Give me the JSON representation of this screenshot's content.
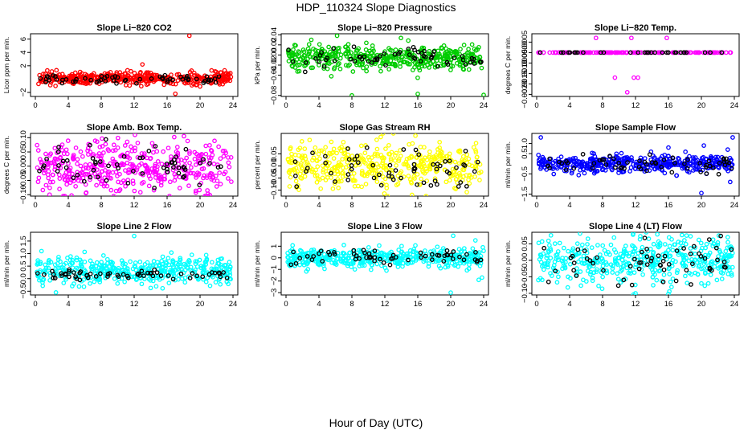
{
  "title": "HDP_110324  Slope Diagnostics",
  "xlabel": "Hour of Day (UTC)",
  "colors": {
    "red": "#ff0000",
    "green": "#00cc00",
    "magenta": "#ff00ff",
    "yellow": "#ffff00",
    "blue": "#0000ff",
    "cyan": "#00ffff",
    "black": "#000000"
  },
  "chart_data": [
    {
      "type": "scatter",
      "title": "Slope Li−820 CO2",
      "ylabel": "Licor ppm per min.",
      "xlim": [
        0,
        24
      ],
      "ylim": [
        -2.6,
        6.8
      ],
      "xticks": [
        0,
        4,
        8,
        12,
        16,
        20,
        24
      ],
      "xtick_labels": [
        "0",
        "4",
        "8",
        "12",
        "16",
        "20",
        "24"
      ],
      "yticks": [
        -2,
        2,
        4,
        6
      ],
      "ytick_labels": [
        "−2",
        "2",
        "4",
        "6"
      ],
      "color": "#ff0000",
      "series": [
        {
          "name": "all",
          "color": "#ff0000",
          "n": 430,
          "center": 0.1,
          "spread": 0.45
        },
        {
          "name": "flagged",
          "color": "#000000",
          "n": 60,
          "center": 0.0,
          "spread": 0.35
        }
      ],
      "outliers": [
        [
          18.7,
          6.5
        ],
        [
          13.0,
          2.2
        ],
        [
          21.4,
          1.3
        ],
        [
          22.5,
          1.0
        ],
        [
          17.0,
          -2.2
        ],
        [
          20.0,
          -1.1
        ],
        [
          11.0,
          -0.9
        ]
      ]
    },
    {
      "type": "scatter",
      "title": "Slope Li−820 Pressure",
      "ylabel": "kPa per min.",
      "xlim": [
        0,
        24
      ],
      "ylim": [
        -0.082,
        0.042
      ],
      "xticks": [
        0,
        4,
        8,
        12,
        16,
        20,
        24
      ],
      "xtick_labels": [
        "0",
        "4",
        "8",
        "12",
        "16",
        "20",
        "24"
      ],
      "yticks": [
        -0.08,
        -0.04,
        -0.02,
        0.0,
        0.02,
        0.04
      ],
      "ytick_labels": [
        "−0.08",
        "−0.04",
        "−0.02",
        "0.00",
        "0.02",
        "0.04"
      ],
      "color": "#00cc00",
      "series": [
        {
          "name": "all",
          "color": "#00cc00",
          "n": 430,
          "center": -0.005,
          "spread": 0.012
        },
        {
          "name": "flagged",
          "color": "#000000",
          "n": 60,
          "center": -0.006,
          "spread": 0.01
        }
      ],
      "outliers": [
        [
          8.0,
          -0.08
        ],
        [
          24.0,
          -0.079
        ],
        [
          16.0,
          -0.077
        ],
        [
          6.2,
          0.038
        ],
        [
          5.5,
          -0.042
        ],
        [
          1.6,
          -0.032
        ]
      ]
    },
    {
      "type": "scatter",
      "title": "Slope Li−820 Temp.",
      "ylabel": "degrees C per min.",
      "xlim": [
        0,
        24
      ],
      "ylim": [
        -0.0021,
        0.0009
      ],
      "xticks": [
        0,
        4,
        8,
        12,
        16,
        20,
        24
      ],
      "xtick_labels": [
        "0",
        "4",
        "8",
        "12",
        "16",
        "20",
        "24"
      ],
      "yticks": [
        -0.002,
        -0.0015,
        -0.001,
        -0.0005,
        0.0,
        0.0005
      ],
      "ytick_labels": [
        "−0.0020",
        "−0.0015",
        "−0.0010",
        "−0.0005",
        "0.0000",
        "0.0005"
      ],
      "color": "#ff00ff",
      "series": [
        {
          "name": "all",
          "color": "#ff00ff",
          "n": 160,
          "center": 0.0,
          "spread": 0.0
        },
        {
          "name": "flagged",
          "color": "#000000",
          "n": 30,
          "center": 0.0,
          "spread": 0.0
        }
      ],
      "outliers": [
        [
          7.2,
          0.0007
        ],
        [
          11.5,
          0.0007
        ],
        [
          15.8,
          0.0007
        ],
        [
          9.5,
          -0.0012
        ],
        [
          12.3,
          -0.0012
        ],
        [
          11.0,
          -0.0019
        ],
        [
          11.8,
          -0.0012
        ]
      ]
    },
    {
      "type": "scatter",
      "title": "Slope Amb. Box Temp.",
      "ylabel": "degrees C per min.",
      "xlim": [
        0,
        24
      ],
      "ylim": [
        -0.105,
        0.115
      ],
      "xticks": [
        0,
        4,
        8,
        12,
        16,
        20,
        24
      ],
      "xtick_labels": [
        "0",
        "4",
        "8",
        "12",
        "16",
        "20",
        "24"
      ],
      "yticks": [
        -0.1,
        -0.05,
        0.0,
        0.05,
        0.1
      ],
      "ytick_labels": [
        "−0.10",
        "−0.05",
        "0.00",
        "0.05",
        "0.10"
      ],
      "color": "#ff00ff",
      "series": [
        {
          "name": "all",
          "color": "#ff00ff",
          "n": 430,
          "center": 0.0,
          "spread": 0.045
        },
        {
          "name": "flagged",
          "color": "#000000",
          "n": 60,
          "center": 0.0,
          "spread": 0.04
        }
      ],
      "outliers": []
    },
    {
      "type": "scatter",
      "title": "Slope Gas Stream RH",
      "ylabel": "percent per min.",
      "xlim": [
        0,
        24
      ],
      "ylim": [
        -0.125,
        0.135
      ],
      "xticks": [
        0,
        4,
        8,
        12,
        16,
        20,
        24
      ],
      "xtick_labels": [
        "0",
        "4",
        "8",
        "12",
        "16",
        "20",
        "24"
      ],
      "yticks": [
        -0.1,
        -0.05,
        0.0,
        0.05
      ],
      "ytick_labels": [
        "−0.10",
        "−0.05",
        "0.00",
        "0.05"
      ],
      "color": "#ffff00",
      "series": [
        {
          "name": "all",
          "color": "#ffff00",
          "n": 430,
          "center": 0.0,
          "spread": 0.05
        },
        {
          "name": "flagged",
          "color": "#000000",
          "n": 60,
          "center": 0.0,
          "spread": 0.045
        }
      ],
      "outliers": [
        [
          15.3,
          -0.12
        ],
        [
          11.5,
          0.12
        ],
        [
          5.5,
          0.1
        ]
      ]
    },
    {
      "type": "scatter",
      "title": "Slope Sample Flow",
      "ylabel": "ml/min per min.",
      "xlim": [
        0,
        24
      ],
      "ylim": [
        -1.6,
        1.5
      ],
      "xticks": [
        0,
        4,
        8,
        12,
        16,
        20,
        24
      ],
      "xtick_labels": [
        "0",
        "4",
        "8",
        "12",
        "16",
        "20",
        "24"
      ],
      "yticks": [
        -1.5,
        -0.5,
        0.5,
        1.0
      ],
      "ytick_labels": [
        "−1.5",
        "−0.5",
        "0.5",
        "1.0"
      ],
      "color": "#0000ff",
      "series": [
        {
          "name": "all",
          "color": "#0000ff",
          "n": 430,
          "center": 0.0,
          "spread": 0.2
        },
        {
          "name": "flagged",
          "color": "#000000",
          "n": 60,
          "center": 0.0,
          "spread": 0.25
        }
      ],
      "outliers": [
        [
          0.5,
          1.3
        ],
        [
          20.0,
          -1.45
        ],
        [
          20.3,
          0.9
        ],
        [
          23.5,
          -0.9
        ],
        [
          23.8,
          1.3
        ],
        [
          23.2,
          0.7
        ],
        [
          16.0,
          0.8
        ]
      ]
    },
    {
      "type": "scatter",
      "title": "Slope Line 2 Flow",
      "ylabel": "ml/min per min.",
      "xlim": [
        0,
        24
      ],
      "ylim": [
        -0.65,
        1.85
      ],
      "xticks": [
        0,
        4,
        8,
        12,
        16,
        20,
        24
      ],
      "xtick_labels": [
        "0",
        "4",
        "8",
        "12",
        "16",
        "20",
        "24"
      ],
      "yticks": [
        -0.5,
        0.0,
        0.5,
        1.0,
        1.5
      ],
      "ytick_labels": [
        "−0.5",
        "0.0",
        "0.5",
        "1.0",
        "1.5"
      ],
      "color": "#00ffff",
      "series": [
        {
          "name": "all",
          "color": "#00ffff",
          "n": 430,
          "center": 0.3,
          "spread": 0.28
        },
        {
          "name": "flagged",
          "color": "#000000",
          "n": 60,
          "center": 0.15,
          "spread": 0.08
        }
      ],
      "outliers": [
        [
          12.0,
          1.7
        ],
        [
          19.0,
          0.95
        ],
        [
          2.5,
          -0.55
        ]
      ]
    },
    {
      "type": "scatter",
      "title": "Slope Line 3 Flow",
      "ylabel": "ml/min per min.",
      "xlim": [
        0,
        24
      ],
      "ylim": [
        -3.2,
        2.2
      ],
      "xticks": [
        0,
        4,
        8,
        12,
        16,
        20,
        24
      ],
      "xtick_labels": [
        "0",
        "4",
        "8",
        "12",
        "16",
        "20",
        "24"
      ],
      "yticks": [
        -3,
        -2,
        -1,
        0,
        1
      ],
      "ytick_labels": [
        "−3",
        "−2",
        "−1",
        "0",
        "1"
      ],
      "color": "#00ffff",
      "series": [
        {
          "name": "all",
          "color": "#00ffff",
          "n": 430,
          "center": 0.0,
          "spread": 0.4
        },
        {
          "name": "flagged",
          "color": "#000000",
          "n": 60,
          "center": 0.0,
          "spread": 0.3
        }
      ],
      "outliers": [
        [
          20.0,
          -3.0
        ],
        [
          23.4,
          -1.9
        ],
        [
          23.8,
          -1.7
        ],
        [
          23.9,
          0.9
        ],
        [
          24.0,
          0.6
        ],
        [
          12.2,
          -1.1
        ],
        [
          20.3,
          1.9
        ],
        [
          23.0,
          1.5
        ]
      ]
    },
    {
      "type": "scatter",
      "title": "Slope Line 4 (LT) Flow",
      "ylabel": "ml/min per min.",
      "xlim": [
        0,
        24
      ],
      "ylim": [
        -0.105,
        0.085
      ],
      "xticks": [
        0,
        4,
        8,
        12,
        16,
        20,
        24
      ],
      "xtick_labels": [
        "0",
        "4",
        "8",
        "12",
        "16",
        "20",
        "24"
      ],
      "yticks": [
        -0.1,
        -0.05,
        0.0,
        0.05
      ],
      "ytick_labels": [
        "−0.10",
        "−0.05",
        "0.00",
        "0.05"
      ],
      "color": "#00ffff",
      "series": [
        {
          "name": "all",
          "color": "#00ffff",
          "n": 430,
          "center": 0.0,
          "spread": 0.035
        },
        {
          "name": "flagged",
          "color": "#000000",
          "n": 60,
          "center": 0.0,
          "spread": 0.035
        }
      ],
      "outliers": [
        [
          12.0,
          -0.1
        ],
        [
          20.0,
          -0.07
        ],
        [
          0.2,
          -0.06
        ],
        [
          18.2,
          0.075
        ],
        [
          23.2,
          0.07
        ]
      ]
    }
  ]
}
